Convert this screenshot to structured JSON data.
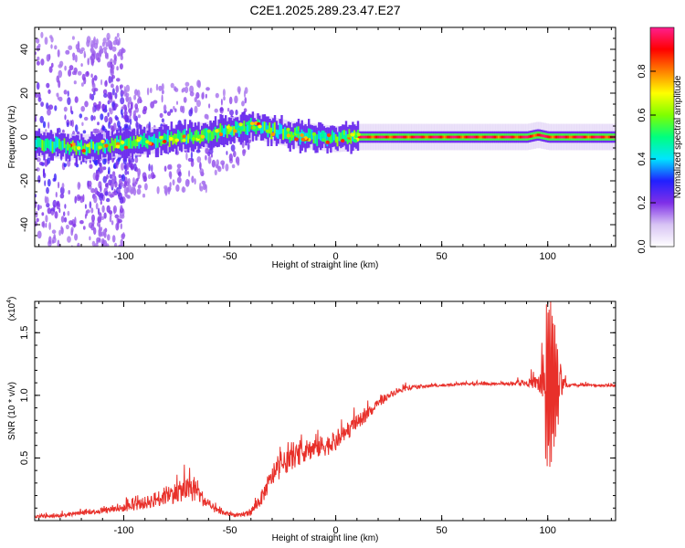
{
  "title": "C2E1.2025.289.23.47.E27",
  "chart_data": [
    {
      "type": "heatmap",
      "xlabel": "Height of straight line (km)",
      "ylabel": "Frequency (Hz)",
      "xlim": [
        -142,
        132
      ],
      "ylim": [
        -50,
        50
      ],
      "x_ticks": [
        -100,
        -50,
        0,
        50,
        100
      ],
      "y_ticks": [
        -40,
        -20,
        0,
        20,
        40
      ],
      "x_tick_labels": [
        "-100",
        "-50",
        "0",
        "50",
        "100"
      ],
      "y_tick_labels": [
        "-40",
        "-20",
        "0",
        "20",
        "40"
      ],
      "ridge": {
        "x": [
          -142,
          -130,
          -120,
          -110,
          -100,
          -90,
          -80,
          -70,
          -60,
          -50,
          -45,
          -40,
          -35,
          -30,
          -20,
          -10,
          0,
          10,
          20,
          50,
          90,
          95,
          100,
          105,
          132
        ],
        "y": [
          -3,
          -4,
          -5,
          -4,
          -3,
          -2,
          -1,
          0,
          1,
          3,
          4,
          5,
          4,
          3,
          1,
          0,
          -1,
          0,
          0,
          0,
          0,
          1,
          0,
          0,
          0
        ]
      },
      "colorbar": {
        "label": "Normalized spectral amplitude",
        "range": [
          0.0,
          1.0
        ],
        "ticks": [
          0.0,
          0.2,
          0.4,
          0.6,
          0.8
        ],
        "tick_labels": [
          "0.0",
          "0.2",
          "0.4",
          "0.6",
          "0.8"
        ],
        "colors": [
          "#ffffff",
          "#d8c4f4",
          "#7f2fe8",
          "#2020ff",
          "#00e5ff",
          "#00ff7f",
          "#7fff00",
          "#ffff00",
          "#ff8000",
          "#ff0000",
          "#ff1f8f"
        ]
      }
    },
    {
      "type": "line",
      "xlabel": "Height of straight line (km)",
      "ylabel": "SNR (10 * v/v)",
      "y_multiplier_label": "(x10",
      "y_multiplier_exp": "4",
      "y_multiplier_close": ")",
      "xlim": [
        -142,
        132
      ],
      "ylim": [
        0,
        1.75
      ],
      "x_ticks": [
        -100,
        -50,
        0,
        50,
        100
      ],
      "y_ticks": [
        0.5,
        1.0,
        1.5
      ],
      "x_tick_labels": [
        "-100",
        "-50",
        "0",
        "50",
        "100"
      ],
      "y_tick_labels": [
        "0.5",
        "1.0",
        "1.5"
      ],
      "color": "#e8302a",
      "series": [
        {
          "x": [
            -142,
            -130,
            -120,
            -110,
            -100,
            -90,
            -80,
            -70,
            -65,
            -60,
            -55,
            -50,
            -45,
            -40,
            -35,
            -30,
            -25,
            -20,
            -15,
            -10,
            -5,
            0,
            5,
            10,
            15,
            20,
            25,
            30,
            35,
            40,
            50,
            60,
            70,
            80,
            90,
            95,
            100,
            102,
            104,
            110,
            120,
            132
          ],
          "y": [
            0.03,
            0.04,
            0.06,
            0.08,
            0.1,
            0.14,
            0.2,
            0.25,
            0.22,
            0.12,
            0.07,
            0.05,
            0.04,
            0.07,
            0.18,
            0.35,
            0.45,
            0.5,
            0.55,
            0.58,
            0.6,
            0.62,
            0.7,
            0.78,
            0.85,
            0.93,
            1.0,
            1.04,
            1.06,
            1.07,
            1.08,
            1.09,
            1.09,
            1.09,
            1.1,
            1.1,
            1.08,
            1.1,
            1.08,
            1.08,
            1.08,
            1.08
          ],
          "noise": [
            0.02,
            0.03,
            0.03,
            0.05,
            0.06,
            0.1,
            0.15,
            0.18,
            0.15,
            0.08,
            0.04,
            0.03,
            0.03,
            0.06,
            0.12,
            0.15,
            0.18,
            0.17,
            0.17,
            0.17,
            0.17,
            0.15,
            0.13,
            0.12,
            0.09,
            0.07,
            0.05,
            0.04,
            0.03,
            0.03,
            0.02,
            0.02,
            0.02,
            0.02,
            0.05,
            0.12,
            0.55,
            0.5,
            0.3,
            0.02,
            0.02,
            0.02
          ]
        }
      ]
    }
  ]
}
